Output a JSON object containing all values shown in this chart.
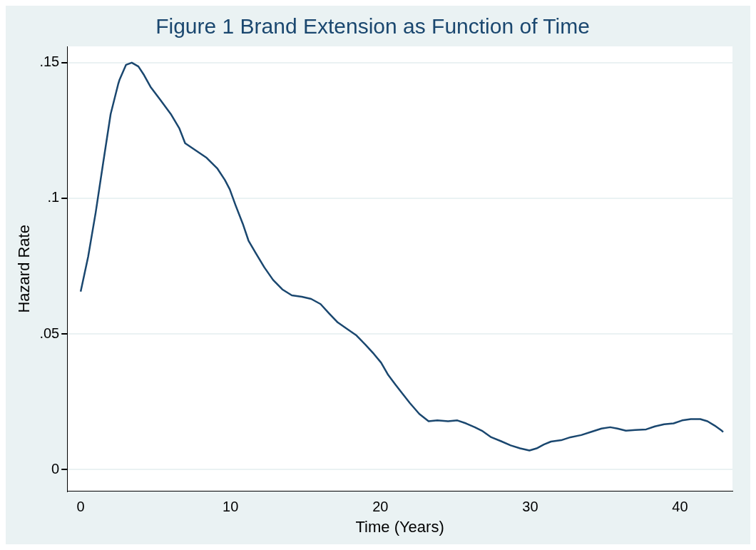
{
  "chart_data": {
    "type": "line",
    "title": "Figure 1 Brand Extension as Function of Time",
    "xlabel": "Time (Years)",
    "ylabel": "Hazard Rate",
    "xlim": [
      -0.9,
      43.5
    ],
    "ylim": [
      -0.008,
      0.156
    ],
    "xticks": [
      0,
      10,
      20,
      30,
      40
    ],
    "yticks": [
      0,
      {
        "value": 0.05,
        "label": ".05"
      },
      {
        "value": 0.1,
        "label": ".1"
      },
      {
        "value": 0.15,
        "label": ".15"
      }
    ],
    "grid": "y",
    "marker": "none",
    "line_style": "solid",
    "x": [
      0,
      0.5,
      1,
      1.5,
      2,
      2.5,
      2.6,
      3.03,
      3.41,
      3.85,
      4.23,
      4.66,
      5.29,
      6.01,
      6.59,
      6.97,
      7.69,
      8.41,
      9.13,
      9.62,
      9.95,
      10.34,
      10.82,
      11.2,
      11.68,
      12.26,
      12.84,
      13.46,
      14.09,
      14.76,
      15.38,
      16.01,
      16.59,
      17.16,
      17.79,
      18.41,
      18.99,
      19.57,
      20.05,
      20.53,
      21.01,
      21.39,
      21.97,
      22.6,
      23.22,
      23.8,
      24.52,
      25.14,
      25.72,
      26.3,
      26.78,
      27.4,
      28.03,
      28.7,
      29.33,
      29.95,
      30.43,
      30.91,
      31.39,
      32.07,
      32.69,
      33.41,
      34.13,
      34.76,
      35.34,
      35.82,
      36.39,
      37.02,
      37.74,
      38.32,
      38.94,
      39.57,
      40.14,
      40.72,
      41.35,
      41.83,
      42.31,
      42.79,
      42.88
    ],
    "series": [
      {
        "color": "#1a476f",
        "values": [
          0.0656,
          0.0785,
          0.0947,
          0.113,
          0.131,
          0.142,
          0.1438,
          0.1492,
          0.15,
          0.1486,
          0.1454,
          0.1411,
          0.1365,
          0.1311,
          0.1257,
          0.1203,
          0.1176,
          0.1149,
          0.1109,
          0.1068,
          0.1033,
          0.0974,
          0.0906,
          0.0844,
          0.0798,
          0.0745,
          0.0699,
          0.0664,
          0.0642,
          0.0637,
          0.0629,
          0.061,
          0.0575,
          0.0542,
          0.0518,
          0.0494,
          0.0461,
          0.0426,
          0.0394,
          0.0348,
          0.0313,
          0.0286,
          0.0245,
          0.0205,
          0.0178,
          0.0181,
          0.0178,
          0.0181,
          0.017,
          0.0156,
          0.0143,
          0.0119,
          0.0105,
          0.0089,
          0.0078,
          0.007,
          0.0078,
          0.0092,
          0.0103,
          0.0108,
          0.0119,
          0.0127,
          0.014,
          0.0151,
          0.0156,
          0.0151,
          0.0143,
          0.0146,
          0.0148,
          0.0159,
          0.0167,
          0.017,
          0.0181,
          0.0186,
          0.0186,
          0.0178,
          0.0162,
          0.0143,
          0.0138
        ]
      }
    ]
  }
}
